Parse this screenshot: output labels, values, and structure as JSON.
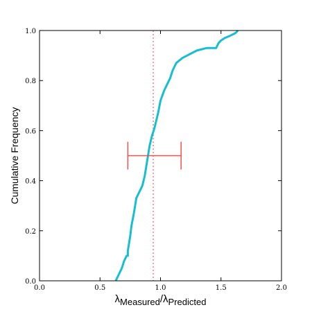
{
  "chart_data": {
    "type": "line",
    "title": "",
    "xlabel": {
      "symbol": "λ",
      "numerator_sub": "Measured",
      "separator": "/",
      "denominator_sub": "Predicted"
    },
    "ylabel": "Cumulative Frequency",
    "xlim": [
      0.0,
      2.0
    ],
    "ylim": [
      0.0,
      1.0
    ],
    "x_ticks": [
      0.0,
      0.5,
      1.0,
      1.5,
      2.0
    ],
    "x_tick_labels": [
      "0.0",
      "0.5",
      "1.0",
      "1.5",
      "2.0"
    ],
    "y_ticks": [
      0.0,
      0.2,
      0.4,
      0.6,
      0.8,
      1.0
    ],
    "y_tick_labels": [
      "0.0",
      "0.2",
      "0.4",
      "0.6",
      "0.8",
      "1.0"
    ],
    "grid": false,
    "legend": "none",
    "series": [
      {
        "color": "#17BECF",
        "x": [
          0.63,
          0.65,
          0.68,
          0.7,
          0.72,
          0.73,
          0.73,
          0.74,
          0.75,
          0.76,
          0.78,
          0.79,
          0.8,
          0.82,
          0.83,
          0.85,
          0.86,
          0.87,
          0.88,
          0.89,
          0.9,
          0.91,
          0.92,
          0.93,
          0.95,
          0.96,
          0.98,
          1.0,
          1.03,
          1.06,
          1.08,
          1.1,
          1.13,
          1.18,
          1.22,
          1.3,
          1.38,
          1.46,
          1.47,
          1.48,
          1.5,
          1.53,
          1.58,
          1.62,
          1.64
        ],
        "y": [
          0.0,
          0.02,
          0.05,
          0.08,
          0.1,
          0.1,
          0.12,
          0.15,
          0.18,
          0.22,
          0.27,
          0.3,
          0.33,
          0.35,
          0.36,
          0.38,
          0.4,
          0.42,
          0.45,
          0.48,
          0.51,
          0.54,
          0.56,
          0.58,
          0.61,
          0.63,
          0.67,
          0.72,
          0.76,
          0.79,
          0.81,
          0.84,
          0.87,
          0.89,
          0.9,
          0.92,
          0.93,
          0.93,
          0.94,
          0.95,
          0.96,
          0.97,
          0.98,
          0.99,
          1.0
        ]
      }
    ],
    "vline": {
      "x": 0.94,
      "color": "#F08080",
      "style": "dotted"
    },
    "errorbar": {
      "center": 0.94,
      "low": 0.73,
      "high": 1.17,
      "y": 0.5,
      "color": "#F05050"
    }
  }
}
